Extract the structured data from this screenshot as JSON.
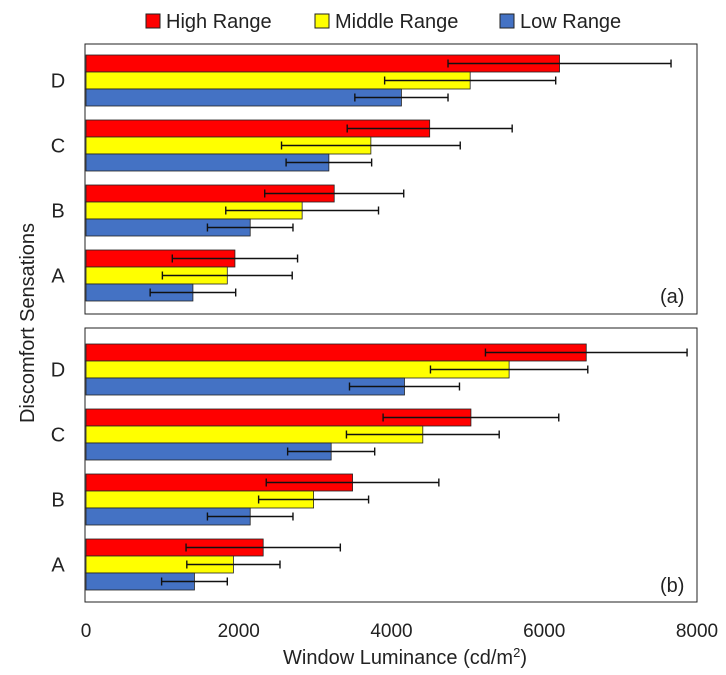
{
  "chart_data": [
    {
      "type": "bar",
      "orientation": "horizontal",
      "panel_label": "(a)",
      "categories": [
        "A",
        "B",
        "C",
        "D"
      ],
      "series": [
        {
          "name": "High Range",
          "color": "#ff0000",
          "values": [
            1950,
            3250,
            4500,
            6200
          ],
          "error": [
            820,
            910,
            1080,
            1460
          ]
        },
        {
          "name": "Middle Range",
          "color": "#ffff00",
          "values": [
            1850,
            2830,
            3730,
            5030
          ],
          "error": [
            850,
            1000,
            1170,
            1120
          ]
        },
        {
          "name": "Low Range",
          "color": "#4472c4",
          "values": [
            1400,
            2150,
            3180,
            4130
          ],
          "error": [
            560,
            560,
            560,
            610
          ]
        }
      ]
    },
    {
      "type": "bar",
      "orientation": "horizontal",
      "panel_label": "(b)",
      "categories": [
        "A",
        "B",
        "C",
        "D"
      ],
      "series": [
        {
          "name": "High Range",
          "color": "#ff0000",
          "values": [
            2320,
            3490,
            5040,
            6550
          ],
          "error": [
            1010,
            1130,
            1150,
            1320
          ]
        },
        {
          "name": "Middle Range",
          "color": "#ffff00",
          "values": [
            1930,
            2980,
            4410,
            5540
          ],
          "error": [
            610,
            720,
            1000,
            1030
          ]
        },
        {
          "name": "Low Range",
          "color": "#4472c4",
          "values": [
            1420,
            2150,
            3210,
            4170
          ],
          "error": [
            430,
            560,
            570,
            720
          ]
        }
      ]
    }
  ],
  "axes": {
    "xlabel": "Window Luminance (cd/m",
    "xlabel_sup": "2",
    "xlabel_close": ")",
    "ylabel": "Discomfort Sensations",
    "xlim": [
      0,
      8000
    ],
    "xticks": [
      "0",
      "2000",
      "4000",
      "6000",
      "8000"
    ],
    "tick_values": [
      0,
      2000,
      4000,
      6000,
      8000
    ]
  },
  "legend": {
    "position": "top",
    "items": [
      {
        "label": "High Range",
        "color": "#ff0000"
      },
      {
        "label": "Middle Range",
        "color": "#ffff00"
      },
      {
        "label": "Low Range",
        "color": "#4472c4"
      }
    ]
  }
}
